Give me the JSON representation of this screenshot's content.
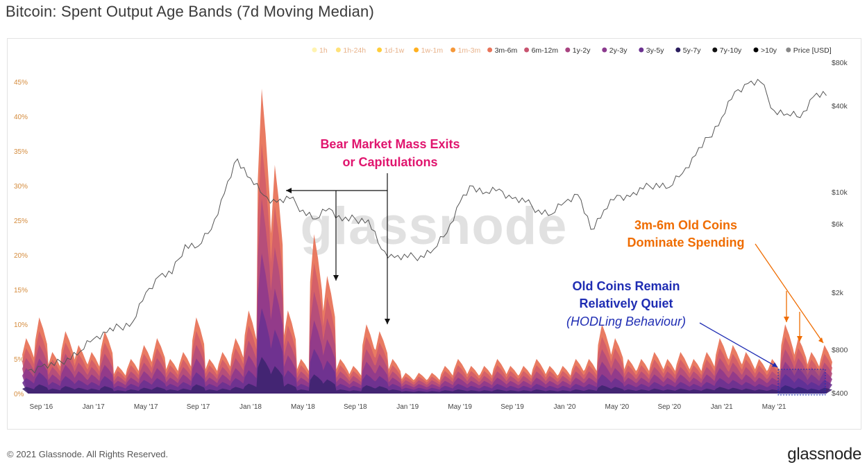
{
  "header": {
    "title": "Bitcoin: Spent Output Age Bands (7d Moving Median)"
  },
  "footer": {
    "copyright": "© 2021 Glassnode. All Rights Reserved.",
    "brand": "glassnode"
  },
  "watermark": "glassnode",
  "colors": {
    "price_line": "#555555",
    "left_axis": "#d48b3c",
    "bands": [
      "#fff3b0",
      "#ffe27a",
      "#ffcd3a",
      "#ffb020",
      "#f5983a",
      "#e8745a",
      "#c85470",
      "#a84380",
      "#8b3a8e",
      "#6b3290",
      "#4a2a82",
      "#2a1d5e",
      "#111111",
      "#000000",
      "#888888"
    ],
    "bear_annotation": "#e0156e",
    "orange_annotation": "#ef6c00",
    "blue_annotation": "#1f2db3"
  },
  "chart_data": {
    "type": "area",
    "title": "Bitcoin: Spent Output Age Bands (7d Moving Median)",
    "legend_position": "top-right",
    "legend": [
      {
        "label": "1h",
        "color": "#fff3b0"
      },
      {
        "label": "1h-24h",
        "color": "#ffe27a"
      },
      {
        "label": "1d-1w",
        "color": "#ffcd3a"
      },
      {
        "label": "1w-1m",
        "color": "#ffb020"
      },
      {
        "label": "1m-3m",
        "color": "#f5983a"
      },
      {
        "label": "3m-6m",
        "color": "#e8745a"
      },
      {
        "label": "6m-12m",
        "color": "#c85470"
      },
      {
        "label": "1y-2y",
        "color": "#a84380"
      },
      {
        "label": "2y-3y",
        "color": "#8b3a8e"
      },
      {
        "label": "3y-5y",
        "color": "#6b3290"
      },
      {
        "label": "5y-7y",
        "color": "#2a1d5e"
      },
      {
        "label": "7y-10y",
        "color": "#111111"
      },
      {
        "label": ">10y",
        "color": "#000000"
      },
      {
        "label": "Price [USD]",
        "color": "#888888"
      }
    ],
    "x_ticks": [
      "Sep '16",
      "Jan '17",
      "May '17",
      "Sep '17",
      "Jan '18",
      "May '18",
      "Sep '18",
      "Jan '19",
      "May '19",
      "Sep '19",
      "Jan '20",
      "May '20",
      "Sep '20",
      "Jan '21",
      "May '21"
    ],
    "y_left_ticks": [
      "0%",
      "5%",
      "10%",
      "15%",
      "20%",
      "25%",
      "30%",
      "35%",
      "40%",
      "45%"
    ],
    "y_left_range": [
      0,
      45
    ],
    "y_right_ticks": [
      "$400",
      "$800",
      "$2k",
      "$6k",
      "$10k",
      "$40k",
      "$80k"
    ],
    "y_right_scale": "log",
    "y_right_range": [
      400,
      80000
    ],
    "grid": false,
    "x": [
      "2016-08",
      "2016-09",
      "2016-10",
      "2016-11",
      "2016-12",
      "2017-01",
      "2017-02",
      "2017-03",
      "2017-04",
      "2017-05",
      "2017-06",
      "2017-07",
      "2017-08",
      "2017-09",
      "2017-10",
      "2017-11",
      "2017-12",
      "2018-01",
      "2018-02",
      "2018-03",
      "2018-04",
      "2018-05",
      "2018-06",
      "2018-07",
      "2018-08",
      "2018-09",
      "2018-10",
      "2018-11",
      "2018-12",
      "2019-01",
      "2019-02",
      "2019-03",
      "2019-04",
      "2019-05",
      "2019-06",
      "2019-07",
      "2019-08",
      "2019-09",
      "2019-10",
      "2019-11",
      "2019-12",
      "2020-01",
      "2020-02",
      "2020-03",
      "2020-04",
      "2020-05",
      "2020-06",
      "2020-07",
      "2020-08",
      "2020-09",
      "2020-10",
      "2020-11",
      "2020-12",
      "2021-01",
      "2021-02",
      "2021-03",
      "2021-04",
      "2021-05",
      "2021-06",
      "2021-07",
      "2021-08",
      "2021-09"
    ],
    "series": [
      {
        "name": "Spent Output Age Bands total (%)",
        "values": [
          8,
          11,
          6,
          9,
          7,
          6,
          9,
          4,
          5,
          7,
          8,
          5,
          6,
          11,
          5,
          6,
          8,
          12,
          44,
          33,
          12,
          5,
          23,
          17,
          5,
          4,
          10,
          9,
          5,
          3,
          3,
          3,
          4,
          5,
          4,
          4,
          5,
          4,
          4,
          5,
          4,
          4,
          5,
          5,
          10,
          8,
          5,
          5,
          6,
          5,
          6,
          5,
          6,
          8,
          7,
          6,
          5,
          5,
          10,
          8,
          6,
          7
        ]
      },
      {
        "name": "Price [USD]",
        "values": [
          575,
          610,
          620,
          700,
          780,
          950,
          1050,
          1150,
          1250,
          2000,
          2600,
          2700,
          4300,
          4200,
          5500,
          9800,
          17000,
          12500,
          9500,
          8500,
          9000,
          7500,
          6500,
          7700,
          6300,
          6500,
          6400,
          4000,
          3500,
          3500,
          3600,
          4000,
          5200,
          8500,
          11000,
          10000,
          10500,
          9000,
          8500,
          7500,
          7000,
          8500,
          9600,
          5500,
          7500,
          9500,
          9300,
          10500,
          11500,
          10800,
          13500,
          18000,
          24000,
          33000,
          50000,
          57000,
          58000,
          37000,
          35000,
          33000,
          46000,
          47000
        ]
      }
    ],
    "annotations": [
      {
        "text": [
          "Bear Market Mass Exits",
          "or Capitulations"
        ],
        "color": "#e0156e"
      },
      {
        "text": [
          "3m-6m Old Coins",
          "Dominate Spending"
        ],
        "color": "#ef6c00"
      },
      {
        "text": [
          "Old Coins Remain",
          "Relatively Quiet",
          "(HODLing Behaviour)"
        ],
        "color": "#1f2db3"
      }
    ]
  }
}
